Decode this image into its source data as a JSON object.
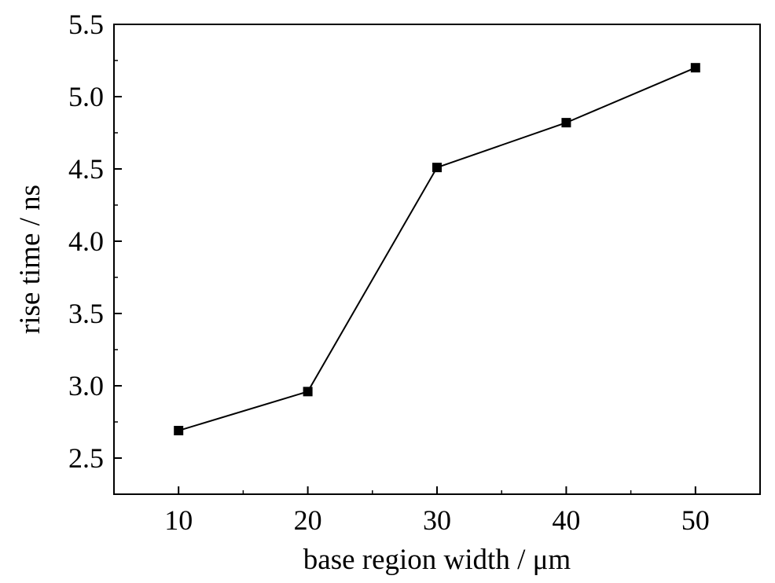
{
  "chart_data": {
    "type": "line",
    "title": "",
    "xlabel": "base region width / μm",
    "ylabel": "rise time / ns",
    "x": [
      10,
      20,
      30,
      40,
      50
    ],
    "series": [
      {
        "values": [
          2.69,
          2.96,
          4.51,
          4.82,
          5.2
        ]
      }
    ],
    "xlim": [
      5,
      55
    ],
    "ylim": [
      2.25,
      5.5
    ],
    "xticks": [
      10,
      20,
      30,
      40,
      50
    ],
    "xtick_labels": [
      "10",
      "20",
      "30",
      "40",
      "50"
    ],
    "yticks": [
      2.5,
      3.0,
      3.5,
      4.0,
      4.5,
      5.0,
      5.5
    ],
    "ytick_labels": [
      "2.5",
      "3.0",
      "3.5",
      "4.0",
      "4.5",
      "5.0",
      "5.5"
    ],
    "marker": "square",
    "grid": false,
    "legend": "none",
    "colors": {
      "line": "#000000",
      "marker": "#000000",
      "axis": "#000000"
    }
  }
}
